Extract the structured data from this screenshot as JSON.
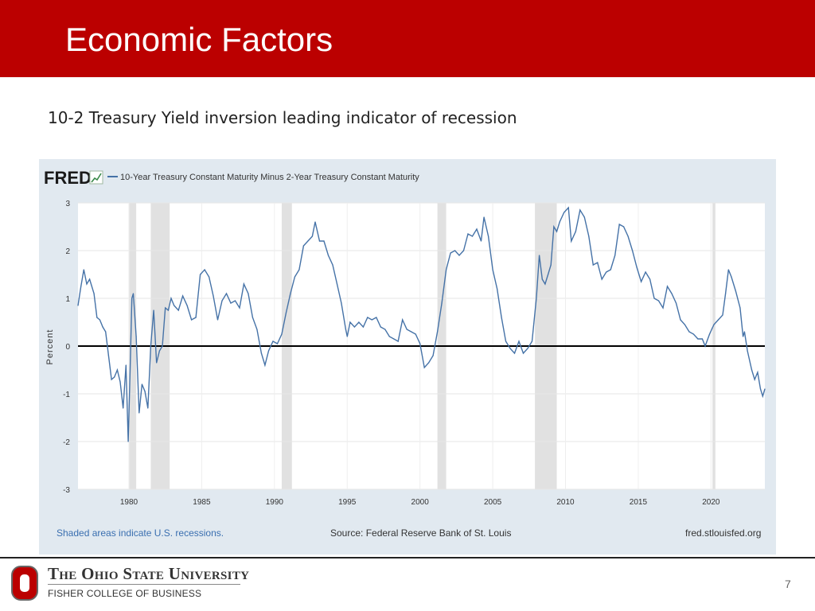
{
  "slide": {
    "title": "Economic Factors",
    "subtitle": "10-2 Treasury Yield inversion leading indicator of recession",
    "page_number": "7",
    "colors": {
      "header": "#bb0000",
      "panel": "#e1e9f0",
      "series": "#4572a7",
      "recession_shading": "#e1e1e1"
    }
  },
  "footer": {
    "university": "The Ohio State University",
    "college": "FISHER COLLEGE OF BUSINESS",
    "logo_icon": "block-o-logo"
  },
  "chart_data": {
    "type": "line",
    "brand": "FRED",
    "legend_entry": "10-Year Treasury Constant Maturity Minus 2-Year Treasury Constant Maturity",
    "ylabel": "Percent",
    "ylim": [
      -3,
      3
    ],
    "xlim": [
      1976.5,
      2023.7
    ],
    "y_ticks": [
      3,
      2,
      1,
      0,
      -1,
      -2,
      -3
    ],
    "x_ticks": [
      1980,
      1985,
      1990,
      1995,
      2000,
      2005,
      2010,
      2015,
      2020
    ],
    "grid": true,
    "zero_line": true,
    "note_left": "Shaded areas indicate U.S. recessions.",
    "note_center": "Source: Federal Reserve Bank of St. Louis",
    "note_right": "fred.stlouisfed.org",
    "recessions": [
      [
        1980.0,
        1980.5
      ],
      [
        1981.5,
        1982.8
      ],
      [
        1990.5,
        1991.2
      ],
      [
        2001.2,
        2001.8
      ],
      [
        2007.9,
        2009.4
      ],
      [
        2020.1,
        2020.3
      ]
    ],
    "series": [
      {
        "name": "10-Year Treasury Constant Maturity Minus 2-Year Treasury Constant Maturity",
        "points": [
          [
            1976.5,
            0.85
          ],
          [
            1976.7,
            1.25
          ],
          [
            1976.9,
            1.6
          ],
          [
            1977.1,
            1.3
          ],
          [
            1977.3,
            1.4
          ],
          [
            1977.6,
            1.1
          ],
          [
            1977.8,
            0.6
          ],
          [
            1978.0,
            0.55
          ],
          [
            1978.2,
            0.4
          ],
          [
            1978.4,
            0.3
          ],
          [
            1978.6,
            -0.2
          ],
          [
            1978.8,
            -0.7
          ],
          [
            1979.0,
            -0.65
          ],
          [
            1979.2,
            -0.5
          ],
          [
            1979.4,
            -0.75
          ],
          [
            1979.6,
            -1.3
          ],
          [
            1979.8,
            -0.4
          ],
          [
            1979.95,
            -2.0
          ],
          [
            1980.1,
            -0.3
          ],
          [
            1980.2,
            1.0
          ],
          [
            1980.3,
            1.1
          ],
          [
            1980.5,
            0.2
          ],
          [
            1980.7,
            -1.4
          ],
          [
            1980.9,
            -0.8
          ],
          [
            1981.1,
            -0.95
          ],
          [
            1981.3,
            -1.3
          ],
          [
            1981.5,
            0.0
          ],
          [
            1981.7,
            0.75
          ],
          [
            1981.9,
            -0.35
          ],
          [
            1982.1,
            -0.1
          ],
          [
            1982.3,
            0.0
          ],
          [
            1982.5,
            0.8
          ],
          [
            1982.7,
            0.75
          ],
          [
            1982.9,
            1.0
          ],
          [
            1983.1,
            0.85
          ],
          [
            1983.4,
            0.75
          ],
          [
            1983.7,
            1.05
          ],
          [
            1984.0,
            0.85
          ],
          [
            1984.3,
            0.55
          ],
          [
            1984.6,
            0.6
          ],
          [
            1984.9,
            1.5
          ],
          [
            1985.2,
            1.6
          ],
          [
            1985.5,
            1.45
          ],
          [
            1985.8,
            1.05
          ],
          [
            1986.1,
            0.55
          ],
          [
            1986.4,
            0.95
          ],
          [
            1986.7,
            1.1
          ],
          [
            1987.0,
            0.9
          ],
          [
            1987.3,
            0.95
          ],
          [
            1987.6,
            0.8
          ],
          [
            1987.9,
            1.3
          ],
          [
            1988.2,
            1.1
          ],
          [
            1988.5,
            0.6
          ],
          [
            1988.8,
            0.35
          ],
          [
            1989.1,
            -0.15
          ],
          [
            1989.35,
            -0.4
          ],
          [
            1989.6,
            -0.1
          ],
          [
            1989.9,
            0.1
          ],
          [
            1990.2,
            0.05
          ],
          [
            1990.5,
            0.25
          ],
          [
            1990.8,
            0.7
          ],
          [
            1991.1,
            1.1
          ],
          [
            1991.4,
            1.45
          ],
          [
            1991.7,
            1.6
          ],
          [
            1992.0,
            2.1
          ],
          [
            1992.3,
            2.2
          ],
          [
            1992.6,
            2.3
          ],
          [
            1992.8,
            2.6
          ],
          [
            1993.1,
            2.2
          ],
          [
            1993.4,
            2.2
          ],
          [
            1993.7,
            1.9
          ],
          [
            1994.0,
            1.7
          ],
          [
            1994.3,
            1.3
          ],
          [
            1994.6,
            0.9
          ],
          [
            1994.9,
            0.35
          ],
          [
            1995.0,
            0.2
          ],
          [
            1995.2,
            0.5
          ],
          [
            1995.5,
            0.4
          ],
          [
            1995.8,
            0.5
          ],
          [
            1996.1,
            0.4
          ],
          [
            1996.4,
            0.6
          ],
          [
            1996.7,
            0.55
          ],
          [
            1997.0,
            0.6
          ],
          [
            1997.3,
            0.4
          ],
          [
            1997.6,
            0.35
          ],
          [
            1997.9,
            0.2
          ],
          [
            1998.2,
            0.15
          ],
          [
            1998.5,
            0.1
          ],
          [
            1998.8,
            0.55
          ],
          [
            1999.1,
            0.35
          ],
          [
            1999.4,
            0.3
          ],
          [
            1999.7,
            0.25
          ],
          [
            2000.0,
            0.05
          ],
          [
            2000.3,
            -0.45
          ],
          [
            2000.6,
            -0.35
          ],
          [
            2000.9,
            -0.2
          ],
          [
            2001.2,
            0.3
          ],
          [
            2001.5,
            0.9
          ],
          [
            2001.8,
            1.6
          ],
          [
            2002.1,
            1.95
          ],
          [
            2002.4,
            2.0
          ],
          [
            2002.7,
            1.9
          ],
          [
            2003.0,
            2.0
          ],
          [
            2003.3,
            2.35
          ],
          [
            2003.6,
            2.3
          ],
          [
            2003.9,
            2.45
          ],
          [
            2004.2,
            2.2
          ],
          [
            2004.4,
            2.7
          ],
          [
            2004.7,
            2.3
          ],
          [
            2005.0,
            1.6
          ],
          [
            2005.3,
            1.2
          ],
          [
            2005.6,
            0.6
          ],
          [
            2005.9,
            0.1
          ],
          [
            2006.2,
            -0.05
          ],
          [
            2006.5,
            -0.15
          ],
          [
            2006.8,
            0.1
          ],
          [
            2007.1,
            -0.15
          ],
          [
            2007.4,
            -0.05
          ],
          [
            2007.7,
            0.1
          ],
          [
            2008.0,
            1.0
          ],
          [
            2008.2,
            1.9
          ],
          [
            2008.4,
            1.4
          ],
          [
            2008.6,
            1.3
          ],
          [
            2008.8,
            1.5
          ],
          [
            2009.0,
            1.7
          ],
          [
            2009.2,
            2.5
          ],
          [
            2009.4,
            2.4
          ],
          [
            2009.6,
            2.6
          ],
          [
            2009.9,
            2.8
          ],
          [
            2010.2,
            2.9
          ],
          [
            2010.4,
            2.2
          ],
          [
            2010.7,
            2.4
          ],
          [
            2011.0,
            2.85
          ],
          [
            2011.3,
            2.7
          ],
          [
            2011.6,
            2.3
          ],
          [
            2011.9,
            1.7
          ],
          [
            2012.2,
            1.75
          ],
          [
            2012.5,
            1.4
          ],
          [
            2012.8,
            1.55
          ],
          [
            2013.1,
            1.6
          ],
          [
            2013.4,
            1.9
          ],
          [
            2013.7,
            2.55
          ],
          [
            2014.0,
            2.5
          ],
          [
            2014.3,
            2.3
          ],
          [
            2014.6,
            2.0
          ],
          [
            2014.9,
            1.65
          ],
          [
            2015.2,
            1.35
          ],
          [
            2015.5,
            1.55
          ],
          [
            2015.8,
            1.4
          ],
          [
            2016.1,
            1.0
          ],
          [
            2016.4,
            0.95
          ],
          [
            2016.7,
            0.8
          ],
          [
            2017.0,
            1.25
          ],
          [
            2017.3,
            1.1
          ],
          [
            2017.6,
            0.9
          ],
          [
            2017.9,
            0.55
          ],
          [
            2018.2,
            0.45
          ],
          [
            2018.5,
            0.3
          ],
          [
            2018.8,
            0.25
          ],
          [
            2019.1,
            0.15
          ],
          [
            2019.4,
            0.15
          ],
          [
            2019.6,
            0.0
          ],
          [
            2019.9,
            0.25
          ],
          [
            2020.2,
            0.45
          ],
          [
            2020.5,
            0.55
          ],
          [
            2020.8,
            0.65
          ],
          [
            2021.0,
            1.1
          ],
          [
            2021.2,
            1.6
          ],
          [
            2021.4,
            1.45
          ],
          [
            2021.7,
            1.15
          ],
          [
            2022.0,
            0.8
          ],
          [
            2022.2,
            0.2
          ],
          [
            2022.3,
            0.3
          ],
          [
            2022.5,
            -0.1
          ],
          [
            2022.8,
            -0.5
          ],
          [
            2023.0,
            -0.7
          ],
          [
            2023.2,
            -0.55
          ],
          [
            2023.4,
            -0.9
          ],
          [
            2023.55,
            -1.05
          ],
          [
            2023.7,
            -0.9
          ]
        ]
      }
    ]
  }
}
